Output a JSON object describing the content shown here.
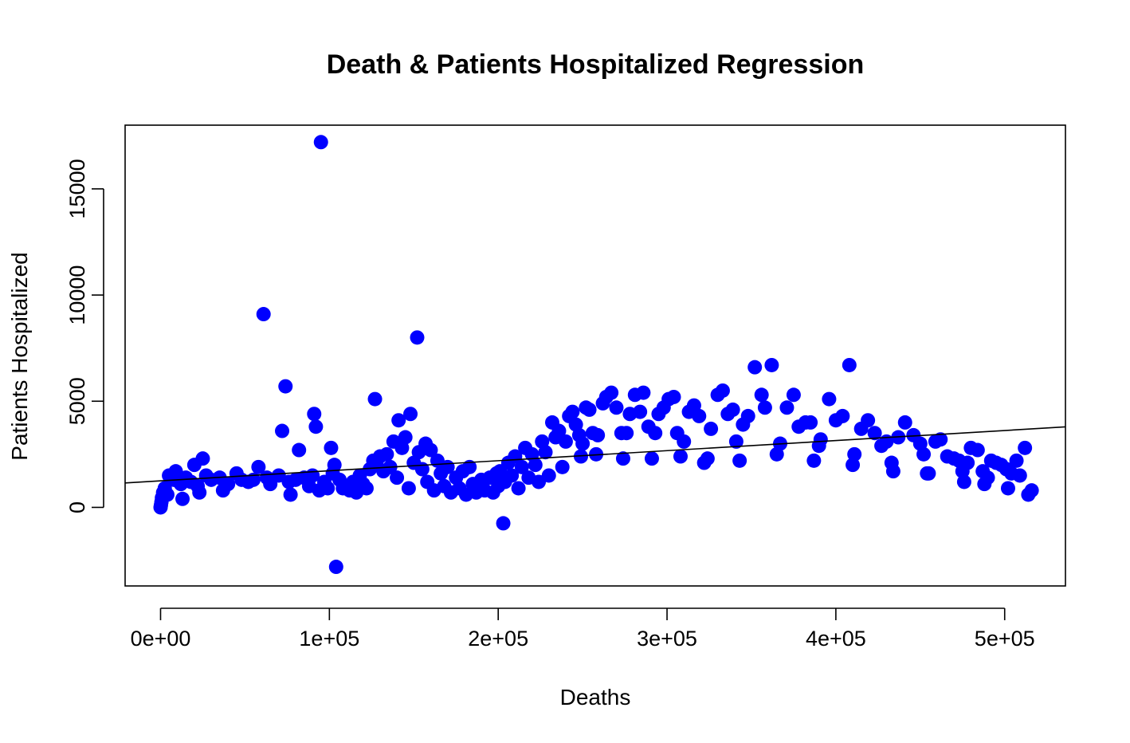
{
  "chart_data": {
    "type": "scatter",
    "title": "Death & Patients Hospitalized Regression",
    "xlabel": "Deaths",
    "ylabel": "Patients Hospitalized",
    "xlim": [
      -21000,
      536000
    ],
    "ylim": [
      -3700,
      18000
    ],
    "x_ticks": [
      {
        "value": 0,
        "label": "0e+00"
      },
      {
        "value": 100000,
        "label": "1e+05"
      },
      {
        "value": 200000,
        "label": "2e+05"
      },
      {
        "value": 300000,
        "label": "3e+05"
      },
      {
        "value": 400000,
        "label": "4e+05"
      },
      {
        "value": 500000,
        "label": "5e+05"
      }
    ],
    "y_ticks": [
      {
        "value": 0,
        "label": "0"
      },
      {
        "value": 5000,
        "label": "5000"
      },
      {
        "value": 10000,
        "label": "10000"
      },
      {
        "value": 15000,
        "label": "15000"
      }
    ],
    "grid": false,
    "legend": "none",
    "regression_line": {
      "intercept": 1250,
      "slope": 0.00474
    },
    "colors": {
      "points": "#0000ff",
      "line": "#000000",
      "axes": "#000000"
    },
    "points": [
      [
        0,
        0
      ],
      [
        200,
        100
      ],
      [
        500,
        250
      ],
      [
        800,
        450
      ],
      [
        1500,
        700
      ],
      [
        2500,
        900
      ],
      [
        4000,
        600
      ],
      [
        5000,
        1500
      ],
      [
        8000,
        1300
      ],
      [
        9000,
        1700
      ],
      [
        12000,
        1100
      ],
      [
        13000,
        400
      ],
      [
        15000,
        1400
      ],
      [
        18000,
        1200
      ],
      [
        20000,
        2000
      ],
      [
        22000,
        1000
      ],
      [
        23000,
        700
      ],
      [
        25000,
        2300
      ],
      [
        27000,
        1500
      ],
      [
        30000,
        1300
      ],
      [
        35000,
        1400
      ],
      [
        37000,
        800
      ],
      [
        40000,
        1100
      ],
      [
        45000,
        1600
      ],
      [
        48000,
        1300
      ],
      [
        52000,
        1200
      ],
      [
        55000,
        1300
      ],
      [
        58000,
        1900
      ],
      [
        61000,
        9100
      ],
      [
        63000,
        1400
      ],
      [
        65000,
        1100
      ],
      [
        70000,
        1500
      ],
      [
        72000,
        3600
      ],
      [
        74000,
        5700
      ],
      [
        76000,
        1200
      ],
      [
        77000,
        600
      ],
      [
        80000,
        1300
      ],
      [
        82000,
        2700
      ],
      [
        85000,
        1400
      ],
      [
        88000,
        1000
      ],
      [
        90000,
        1500
      ],
      [
        91000,
        4400
      ],
      [
        92000,
        3800
      ],
      [
        94000,
        800
      ],
      [
        95000,
        17200
      ],
      [
        97000,
        1200
      ],
      [
        99000,
        900
      ],
      [
        101000,
        2800
      ],
      [
        102000,
        1600
      ],
      [
        103000,
        2000
      ],
      [
        104000,
        -2800
      ],
      [
        106000,
        1300
      ],
      [
        108000,
        900
      ],
      [
        110000,
        1000
      ],
      [
        112000,
        800
      ],
      [
        114000,
        1200
      ],
      [
        116000,
        700
      ],
      [
        118000,
        1500
      ],
      [
        120000,
        1100
      ],
      [
        122000,
        900
      ],
      [
        124000,
        1800
      ],
      [
        126000,
        2200
      ],
      [
        127000,
        5100
      ],
      [
        128000,
        2000
      ],
      [
        130000,
        2400
      ],
      [
        132000,
        1700
      ],
      [
        134000,
        2500
      ],
      [
        136000,
        1900
      ],
      [
        138000,
        3100
      ],
      [
        140000,
        1400
      ],
      [
        141000,
        4100
      ],
      [
        143000,
        2800
      ],
      [
        145000,
        3300
      ],
      [
        147000,
        900
      ],
      [
        148000,
        4400
      ],
      [
        150000,
        2100
      ],
      [
        152000,
        8000
      ],
      [
        153000,
        2600
      ],
      [
        155000,
        1800
      ],
      [
        157000,
        3000
      ],
      [
        158000,
        1200
      ],
      [
        160000,
        2700
      ],
      [
        162000,
        800
      ],
      [
        164000,
        2200
      ],
      [
        166000,
        1600
      ],
      [
        168000,
        1000
      ],
      [
        170000,
        1900
      ],
      [
        172000,
        700
      ],
      [
        175000,
        1400
      ],
      [
        177000,
        900
      ],
      [
        179000,
        1700
      ],
      [
        181000,
        600
      ],
      [
        183000,
        1900
      ],
      [
        185000,
        1100
      ],
      [
        187000,
        700
      ],
      [
        190000,
        1300
      ],
      [
        192000,
        800
      ],
      [
        195000,
        1400
      ],
      [
        197000,
        700
      ],
      [
        199000,
        1600
      ],
      [
        200000,
        1000
      ],
      [
        201000,
        1700
      ],
      [
        203000,
        -750
      ],
      [
        204000,
        1200
      ],
      [
        206000,
        2100
      ],
      [
        208000,
        1500
      ],
      [
        210000,
        2400
      ],
      [
        212000,
        900
      ],
      [
        214000,
        1900
      ],
      [
        216000,
        2800
      ],
      [
        218000,
        1400
      ],
      [
        220000,
        2500
      ],
      [
        222000,
        2000
      ],
      [
        224000,
        1200
      ],
      [
        226000,
        3100
      ],
      [
        228000,
        2600
      ],
      [
        230000,
        1500
      ],
      [
        232000,
        4000
      ],
      [
        234000,
        3300
      ],
      [
        236000,
        3600
      ],
      [
        238000,
        1900
      ],
      [
        240000,
        3100
      ],
      [
        242000,
        4300
      ],
      [
        244000,
        4500
      ],
      [
        246000,
        3900
      ],
      [
        248000,
        3400
      ],
      [
        249000,
        2400
      ],
      [
        250000,
        3000
      ],
      [
        252000,
        4700
      ],
      [
        254000,
        4600
      ],
      [
        256000,
        3500
      ],
      [
        258000,
        2500
      ],
      [
        259000,
        3400
      ],
      [
        262000,
        4900
      ],
      [
        264000,
        5200
      ],
      [
        267000,
        5400
      ],
      [
        270000,
        4700
      ],
      [
        273000,
        3500
      ],
      [
        274000,
        2300
      ],
      [
        276000,
        3500
      ],
      [
        278000,
        4400
      ],
      [
        281000,
        5300
      ],
      [
        284000,
        4500
      ],
      [
        286000,
        5400
      ],
      [
        289000,
        3800
      ],
      [
        291000,
        2300
      ],
      [
        293000,
        3500
      ],
      [
        295000,
        4400
      ],
      [
        298000,
        4700
      ],
      [
        301000,
        5100
      ],
      [
        304000,
        5200
      ],
      [
        306000,
        3500
      ],
      [
        308000,
        2400
      ],
      [
        310000,
        3100
      ],
      [
        313000,
        4500
      ],
      [
        316000,
        4800
      ],
      [
        319000,
        4300
      ],
      [
        322000,
        2100
      ],
      [
        324000,
        2300
      ],
      [
        326000,
        3700
      ],
      [
        330000,
        5300
      ],
      [
        333000,
        5500
      ],
      [
        336000,
        4400
      ],
      [
        339000,
        4600
      ],
      [
        341000,
        3100
      ],
      [
        343000,
        2200
      ],
      [
        345000,
        3900
      ],
      [
        348000,
        4300
      ],
      [
        352000,
        6600
      ],
      [
        356000,
        5300
      ],
      [
        358000,
        4700
      ],
      [
        362000,
        6700
      ],
      [
        365000,
        2500
      ],
      [
        367000,
        3000
      ],
      [
        371000,
        4700
      ],
      [
        375000,
        5300
      ],
      [
        378000,
        3800
      ],
      [
        382000,
        4000
      ],
      [
        385000,
        4000
      ],
      [
        387000,
        2200
      ],
      [
        390000,
        2900
      ],
      [
        391000,
        3200
      ],
      [
        396000,
        5100
      ],
      [
        400000,
        4100
      ],
      [
        404000,
        4300
      ],
      [
        408000,
        6700
      ],
      [
        410000,
        2000
      ],
      [
        411000,
        2500
      ],
      [
        415000,
        3700
      ],
      [
        419000,
        4100
      ],
      [
        423000,
        3500
      ],
      [
        427000,
        2900
      ],
      [
        430000,
        3100
      ],
      [
        433000,
        2100
      ],
      [
        434000,
        1700
      ],
      [
        437000,
        3300
      ],
      [
        441000,
        4000
      ],
      [
        446000,
        3400
      ],
      [
        450000,
        3000
      ],
      [
        452000,
        2500
      ],
      [
        454000,
        1600
      ],
      [
        455000,
        1600
      ],
      [
        459000,
        3100
      ],
      [
        462000,
        3200
      ],
      [
        466000,
        2400
      ],
      [
        470000,
        2300
      ],
      [
        473000,
        2200
      ],
      [
        475000,
        1700
      ],
      [
        476000,
        1200
      ],
      [
        478000,
        2100
      ],
      [
        480000,
        2800
      ],
      [
        484000,
        2700
      ],
      [
        487000,
        1700
      ],
      [
        488000,
        1100
      ],
      [
        490000,
        1400
      ],
      [
        492000,
        2200
      ],
      [
        495000,
        2100
      ],
      [
        498000,
        2000
      ],
      [
        501000,
        1800
      ],
      [
        502000,
        900
      ],
      [
        504000,
        1600
      ],
      [
        507000,
        2200
      ],
      [
        509000,
        1500
      ],
      [
        512000,
        2800
      ],
      [
        514000,
        600
      ],
      [
        516000,
        800
      ]
    ]
  }
}
